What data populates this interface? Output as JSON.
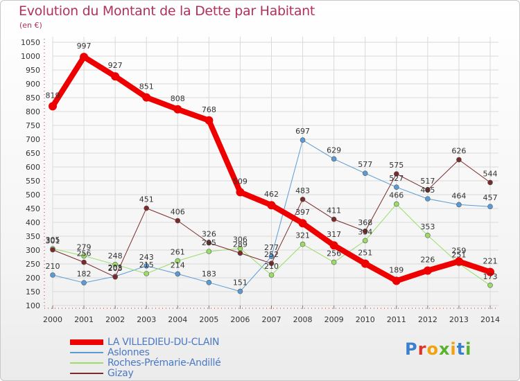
{
  "title": "Evolution du Montant de la Dette par Habitant",
  "unit": "(en €)",
  "logo": "Proxiti",
  "chart_data": {
    "type": "line",
    "title": "Evolution du Montant de la Dette par Habitant",
    "ylabel": "(en €)",
    "ylim": [
      100,
      1050
    ],
    "yticks": [
      100,
      150,
      200,
      250,
      300,
      350,
      400,
      450,
      500,
      550,
      600,
      650,
      700,
      750,
      800,
      850,
      900,
      950,
      1000,
      1050
    ],
    "categories": [
      "2000",
      "2001",
      "2002",
      "2003",
      "2004",
      "2005",
      "2006",
      "2007",
      "2008",
      "2009",
      "2010",
      "2011",
      "2012",
      "2013",
      "2014"
    ],
    "grid": true,
    "legend_position": "bottom-left",
    "series": [
      {
        "name": "LA VILLEDIEU-DU-CLAIN",
        "color": "#ee0000",
        "width": 8,
        "values": [
          819,
          997,
          927,
          851,
          808,
          768,
          509,
          462,
          397,
          317,
          251,
          189,
          226,
          259,
          221
        ]
      },
      {
        "name": "Aslonnes",
        "color": "#5b9bd5",
        "width": 1,
        "values": [
          210,
          182,
          205,
          243,
          214,
          183,
          151,
          277,
          697,
          629,
          577,
          527,
          485,
          464,
          457
        ]
      },
      {
        "name": "Roches-Prémarie-Andillé",
        "color": "#99dd66",
        "width": 1,
        "values": [
          305,
          279,
          248,
          215,
          261,
          295,
          306,
          210,
          321,
          256,
          334,
          466,
          353,
          251,
          173
        ]
      },
      {
        "name": "Gizay",
        "color": "#7a2a2a",
        "width": 1,
        "values": [
          301,
          256,
          203,
          451,
          406,
          326,
          289,
          252,
          483,
          411,
          368,
          575,
          517,
          626,
          544
        ]
      }
    ]
  }
}
